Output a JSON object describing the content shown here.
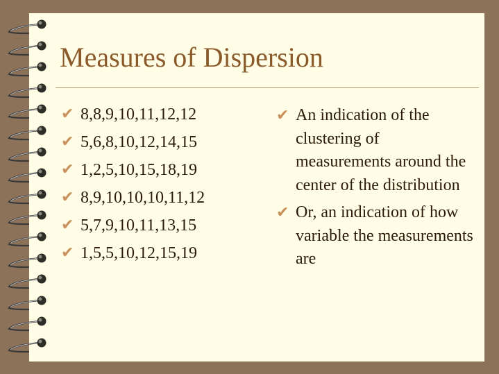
{
  "slide": {
    "title": "Measures of Dispersion",
    "left_items": [
      "8,8,9,10,11,12,12",
      "5,6,8,10,12,14,15",
      "1,2,5,10,15,18,19",
      "8,9,10,10,10,11,12",
      "5,7,9,10,11,13,15",
      "1,5,5,10,12,15,19"
    ],
    "right_items": [
      "An indication of the clustering of measurements around the center of the distribution",
      "Or, an indication of how variable the measurements are"
    ],
    "bullet_icon": "checkmark-icon",
    "colors": {
      "background": "#8c7259",
      "page": "#fffde5",
      "title": "#8b5a2b",
      "bullet": "#c8905a",
      "text": "#2b1b08"
    }
  }
}
